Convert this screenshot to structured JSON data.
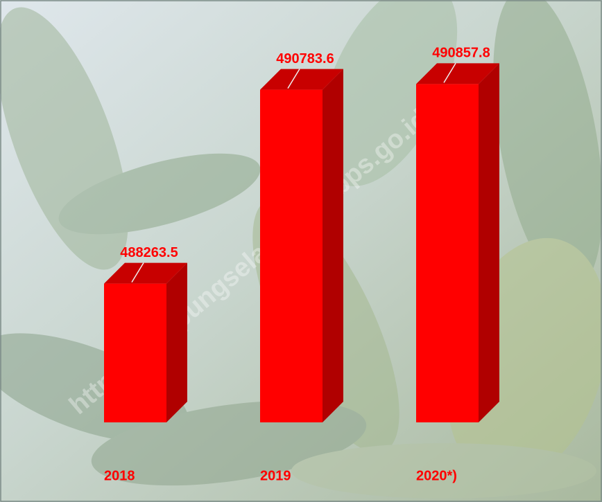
{
  "chart_data": {
    "type": "bar3d",
    "categories": [
      "2018",
      "2019",
      "2020*)"
    ],
    "values": [
      488263.5,
      490783.6,
      490857.8
    ],
    "color": "#ff0000",
    "ylim": [
      486460,
      491230
    ],
    "watermark": "https://lampungselatankab.bps.go.id"
  }
}
